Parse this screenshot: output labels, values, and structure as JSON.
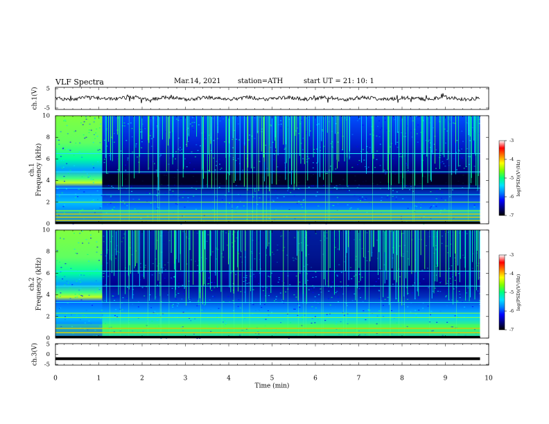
{
  "header": {
    "title": "VLF  Spectra",
    "date": "Mar.14, 2021",
    "station": "station=ATH",
    "start": "start  UT  =   21: 10: 1"
  },
  "colors": {
    "colormap": [
      "#000000",
      "#000080",
      "#0000ff",
      "#0080ff",
      "#00e0ff",
      "#00ff80",
      "#80ff00",
      "#ffff00",
      "#ff8000",
      "#ff0000",
      "#ffffff"
    ],
    "trace": "#000000",
    "frame": "#000000"
  },
  "chart_data": [
    {
      "type": "line",
      "panel": "ch1",
      "ylabel": "ch.1(V)",
      "ylim": [
        -5,
        5
      ],
      "yticks": [
        "5",
        "-5"
      ],
      "xlim": [
        0,
        10
      ],
      "series": [
        {
          "x": [
            0,
            1,
            2,
            3,
            4,
            5,
            6,
            7,
            8,
            9,
            9.8
          ],
          "y": [
            0,
            0.5,
            0,
            0.5,
            0.5,
            0,
            0,
            0.5,
            0,
            0,
            0
          ]
        }
      ]
    },
    {
      "type": "heatmap",
      "panel": "ch1",
      "ylabel": "ch.1\nFrequency (kHz)",
      "ylim": [
        0,
        10
      ],
      "yticks": [
        "0",
        "2",
        "4",
        "6",
        "8",
        "10"
      ],
      "xlim": [
        0,
        10
      ],
      "data_end_min": 9.8,
      "cbar_label": "log(PSD)(V²/Hz)",
      "cbar_ticks": [
        "-3",
        "-4",
        "-5",
        "-6",
        "-7"
      ],
      "clim": [
        -7,
        -3
      ],
      "broadband_until_min": 1.08,
      "lines_khz": [
        0.3,
        0.6,
        0.9,
        1.2,
        2.0,
        2.7,
        3.3,
        4.8,
        6.5
      ]
    },
    {
      "type": "heatmap",
      "panel": "ch2",
      "ylabel": "ch.2\nFrequency (kHz)",
      "ylim": [
        0,
        10
      ],
      "yticks": [
        "0",
        "2",
        "4",
        "6",
        "8",
        "10"
      ],
      "xlim": [
        0,
        10
      ],
      "data_end_min": 9.8,
      "cbar_label": "log(PSD)(V²/Hz)",
      "cbar_ticks": [
        "-3",
        "-4",
        "-5",
        "-6",
        "-7"
      ],
      "clim": [
        -7,
        -3
      ],
      "broadband_until_min": 1.08,
      "lines_khz": [
        0.5,
        0.9,
        1.9,
        2.3,
        3.3,
        4.8,
        6.2
      ]
    },
    {
      "type": "line",
      "panel": "ch3",
      "ylabel": "ch.3(V)",
      "ylim": [
        -5,
        5
      ],
      "yticks": [
        "5",
        "0",
        "-5"
      ],
      "xlim": [
        0,
        10
      ],
      "xlabel": "Time  (min)",
      "xticks": [
        "0",
        "1",
        "2",
        "3",
        "4",
        "5",
        "6",
        "7",
        "8",
        "9",
        "10"
      ],
      "series": [
        {
          "x": [
            0,
            9.8
          ],
          "y": [
            -2,
            -2
          ]
        }
      ]
    }
  ]
}
